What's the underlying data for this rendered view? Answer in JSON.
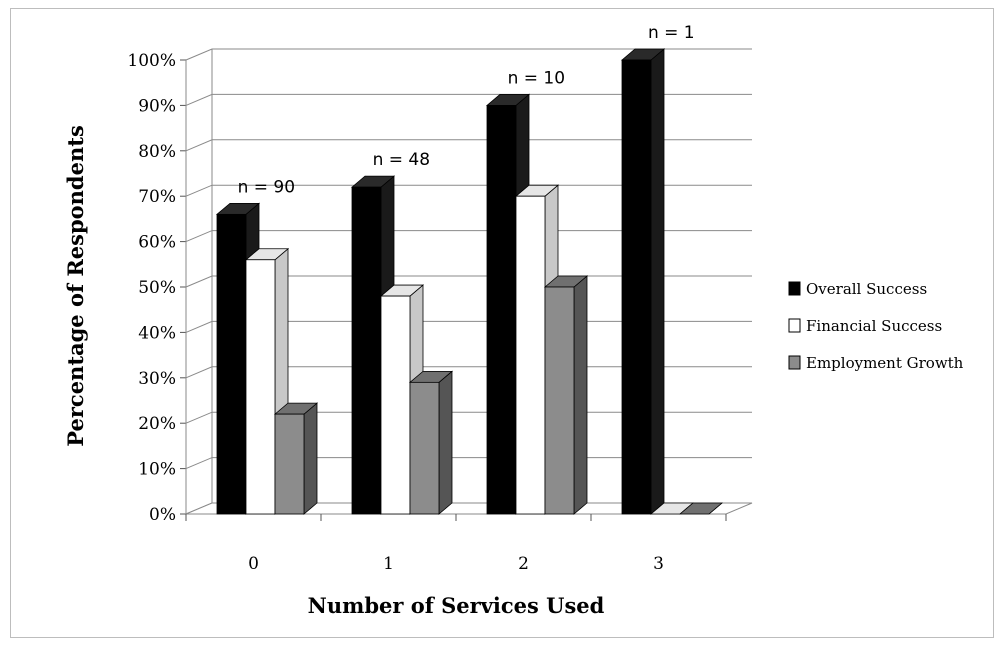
{
  "chart_data": {
    "type": "bar",
    "title": "",
    "xlabel": "Number of Services Used",
    "ylabel": "Percentage of Respondents",
    "categories": [
      "0",
      "1",
      "2",
      "3"
    ],
    "ylim": [
      0,
      100
    ],
    "y_ticks": [
      "0%",
      "10%",
      "20%",
      "30%",
      "40%",
      "50%",
      "60%",
      "70%",
      "80%",
      "90%",
      "100%"
    ],
    "grid": true,
    "legend_position": "right",
    "series": [
      {
        "name": "Overall Success",
        "values": [
          66,
          72,
          90,
          100
        ],
        "color": "#000000",
        "side_color": "#1a1a1a",
        "top_color": "#2a2a2a"
      },
      {
        "name": "Financial Success",
        "values": [
          56,
          48,
          70,
          0
        ],
        "color": "#ffffff",
        "side_color": "#c8c8c8",
        "top_color": "#e6e6e6"
      },
      {
        "name": "Employment Growth",
        "values": [
          22,
          29,
          50,
          0
        ],
        "color": "#8c8c8c",
        "side_color": "#555555",
        "top_color": "#707070"
      }
    ],
    "annotations": [
      {
        "category": "0",
        "text": "n = 90"
      },
      {
        "category": "1",
        "text": "n = 48"
      },
      {
        "category": "2",
        "text": "n = 10"
      },
      {
        "category": "3",
        "text": "n = 1"
      }
    ]
  }
}
